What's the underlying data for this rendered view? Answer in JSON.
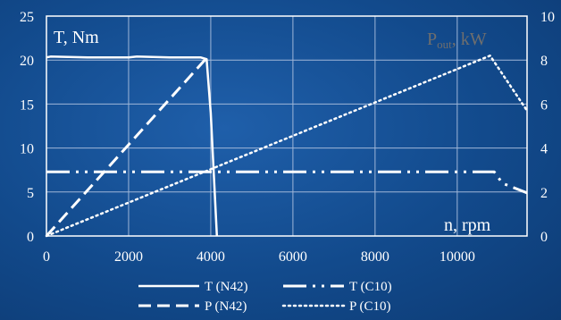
{
  "chart_data": {
    "type": "line",
    "title": "",
    "xlabel": "n, rpm",
    "ylabel_left": "T, Nm",
    "ylabel_right": {
      "main": "P",
      "sub": "out",
      "unit": ", kW"
    },
    "xlim": [
      0,
      11700
    ],
    "ylim_left": [
      0,
      25
    ],
    "ylim_right": [
      0,
      10
    ],
    "x_ticks": [
      0,
      2000,
      4000,
      6000,
      8000,
      10000
    ],
    "y_left_ticks": [
      0,
      5,
      10,
      15,
      20,
      25
    ],
    "y_right_ticks": [
      0,
      2,
      4,
      6,
      8,
      10
    ],
    "grid": true,
    "legend_position": "bottom",
    "colors": {
      "lines": "#ffffff",
      "grid": "#9fb6d8",
      "right_axis_label": "#6e6e6e"
    },
    "series": [
      {
        "name": "T (N42)",
        "axis": "left",
        "style": "solid",
        "x": [
          0,
          100,
          1000,
          2000,
          2200,
          3000,
          3750,
          3900,
          4000,
          4150
        ],
        "y": [
          20.3,
          20.4,
          20.3,
          20.3,
          20.4,
          20.3,
          20.3,
          20.1,
          14,
          0
        ]
      },
      {
        "name": "T (C10)",
        "axis": "left",
        "style": "dash-dot-dot",
        "x": [
          0,
          10900,
          11100,
          11700
        ],
        "y": [
          7.3,
          7.3,
          6.0,
          4.9
        ]
      },
      {
        "name": "P (N42)",
        "axis": "right",
        "style": "dashed",
        "x": [
          0,
          3950
        ],
        "y": [
          0,
          8.2
        ]
      },
      {
        "name": "P (C10)",
        "axis": "right",
        "style": "dotted",
        "x": [
          0,
          10800,
          11700
        ],
        "y": [
          0,
          8.2,
          5.7
        ]
      }
    ]
  }
}
